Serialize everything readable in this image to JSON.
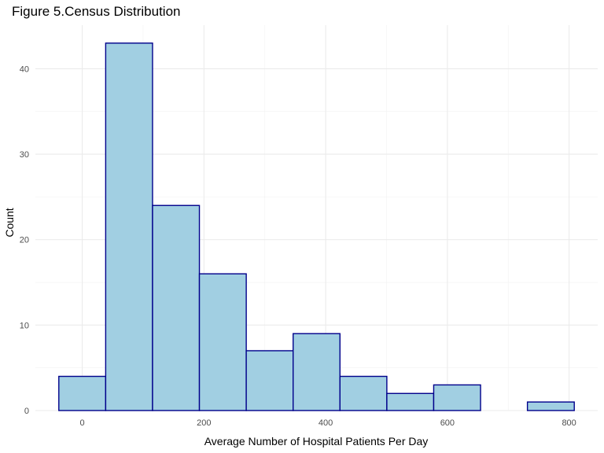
{
  "chart_data": {
    "type": "bar",
    "title": "Figure 5.Census Distribution",
    "xlabel": "Average Number of Hospital Patients Per Day",
    "ylabel": "Count",
    "bins": [
      {
        "x_start": -38.5,
        "x_end": 38.5,
        "count": 4
      },
      {
        "x_start": 38.5,
        "x_end": 115.5,
        "count": 43
      },
      {
        "x_start": 115.5,
        "x_end": 192.5,
        "count": 24
      },
      {
        "x_start": 192.5,
        "x_end": 269.5,
        "count": 16
      },
      {
        "x_start": 269.5,
        "x_end": 346.5,
        "count": 7
      },
      {
        "x_start": 346.5,
        "x_end": 423.5,
        "count": 9
      },
      {
        "x_start": 423.5,
        "x_end": 500.5,
        "count": 4
      },
      {
        "x_start": 500.5,
        "x_end": 577.5,
        "count": 2
      },
      {
        "x_start": 577.5,
        "x_end": 654.5,
        "count": 3
      },
      {
        "x_start": 654.5,
        "x_end": 731.5,
        "count": 0
      },
      {
        "x_start": 731.5,
        "x_end": 808.5,
        "count": 1
      }
    ],
    "xlim": [
      -77,
      847
    ],
    "ylim": [
      0,
      45.1
    ],
    "x_ticks": [
      0,
      200,
      400,
      600,
      800
    ],
    "x_tick_labels": [
      "0",
      "200",
      "400",
      "600",
      "800"
    ],
    "x_minor_ticks": [
      100,
      300,
      500,
      700
    ],
    "y_ticks": [
      0,
      10,
      20,
      30,
      40
    ],
    "y_tick_labels": [
      "0",
      "10",
      "20",
      "30",
      "40"
    ],
    "y_minor_ticks": [
      5,
      15,
      25,
      35
    ],
    "grid": true,
    "colors": {
      "bar_fill": "#a1cfe2",
      "bar_stroke": "#00008b",
      "grid_major": "#ebebeb",
      "grid_minor": "#f2f2f2",
      "tick_text": "#4d4d4d"
    }
  }
}
